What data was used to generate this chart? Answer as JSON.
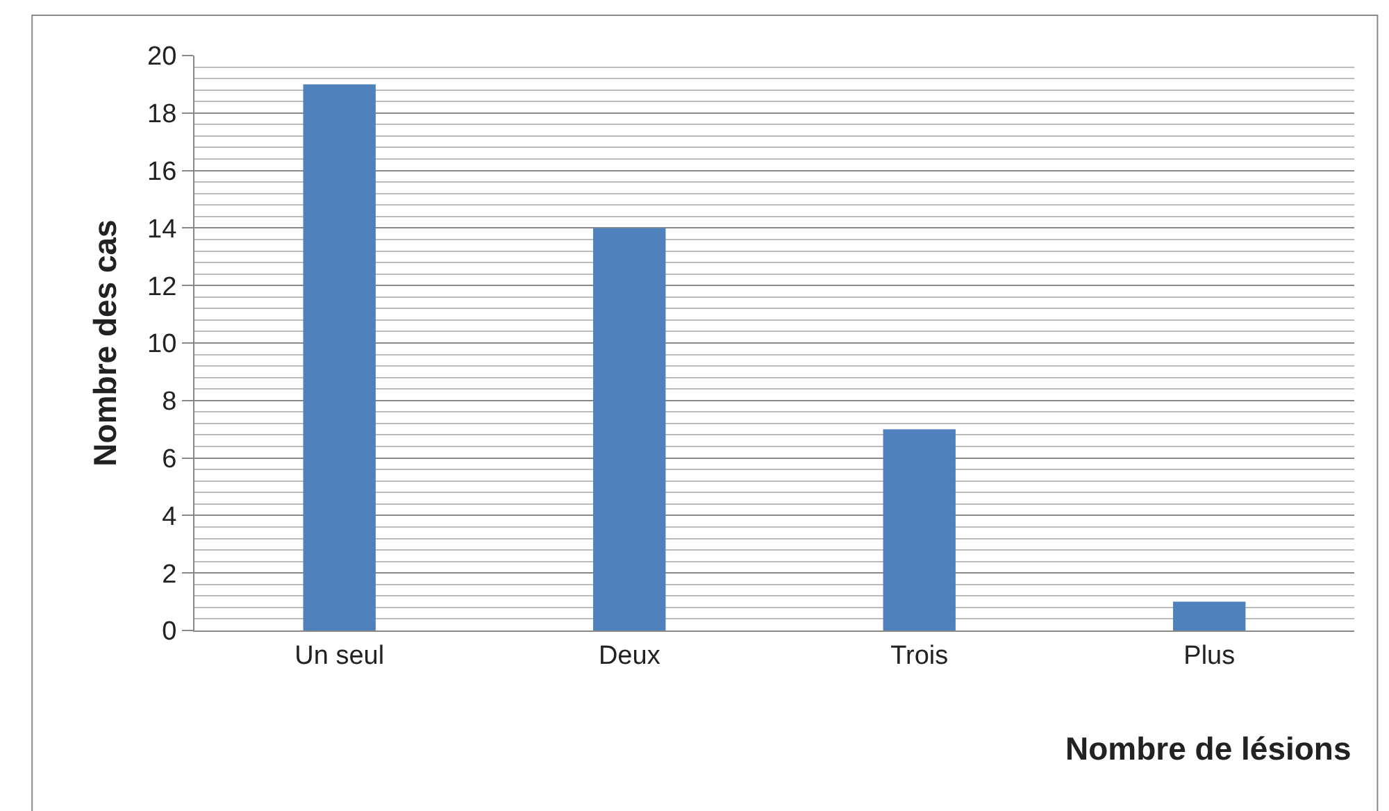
{
  "chart_data": {
    "type": "bar",
    "xlabel": "Nombre de lésions",
    "ylabel": "Nombre des cas",
    "categories": [
      "Un seul",
      "Deux",
      "Trois",
      "Plus"
    ],
    "values": [
      19,
      14,
      7,
      1
    ],
    "color": "#4f81bd",
    "ylim": [
      0,
      20
    ],
    "yticks": [
      0,
      2,
      4,
      6,
      8,
      10,
      12,
      14,
      16,
      18,
      20
    ],
    "grid": "y"
  }
}
